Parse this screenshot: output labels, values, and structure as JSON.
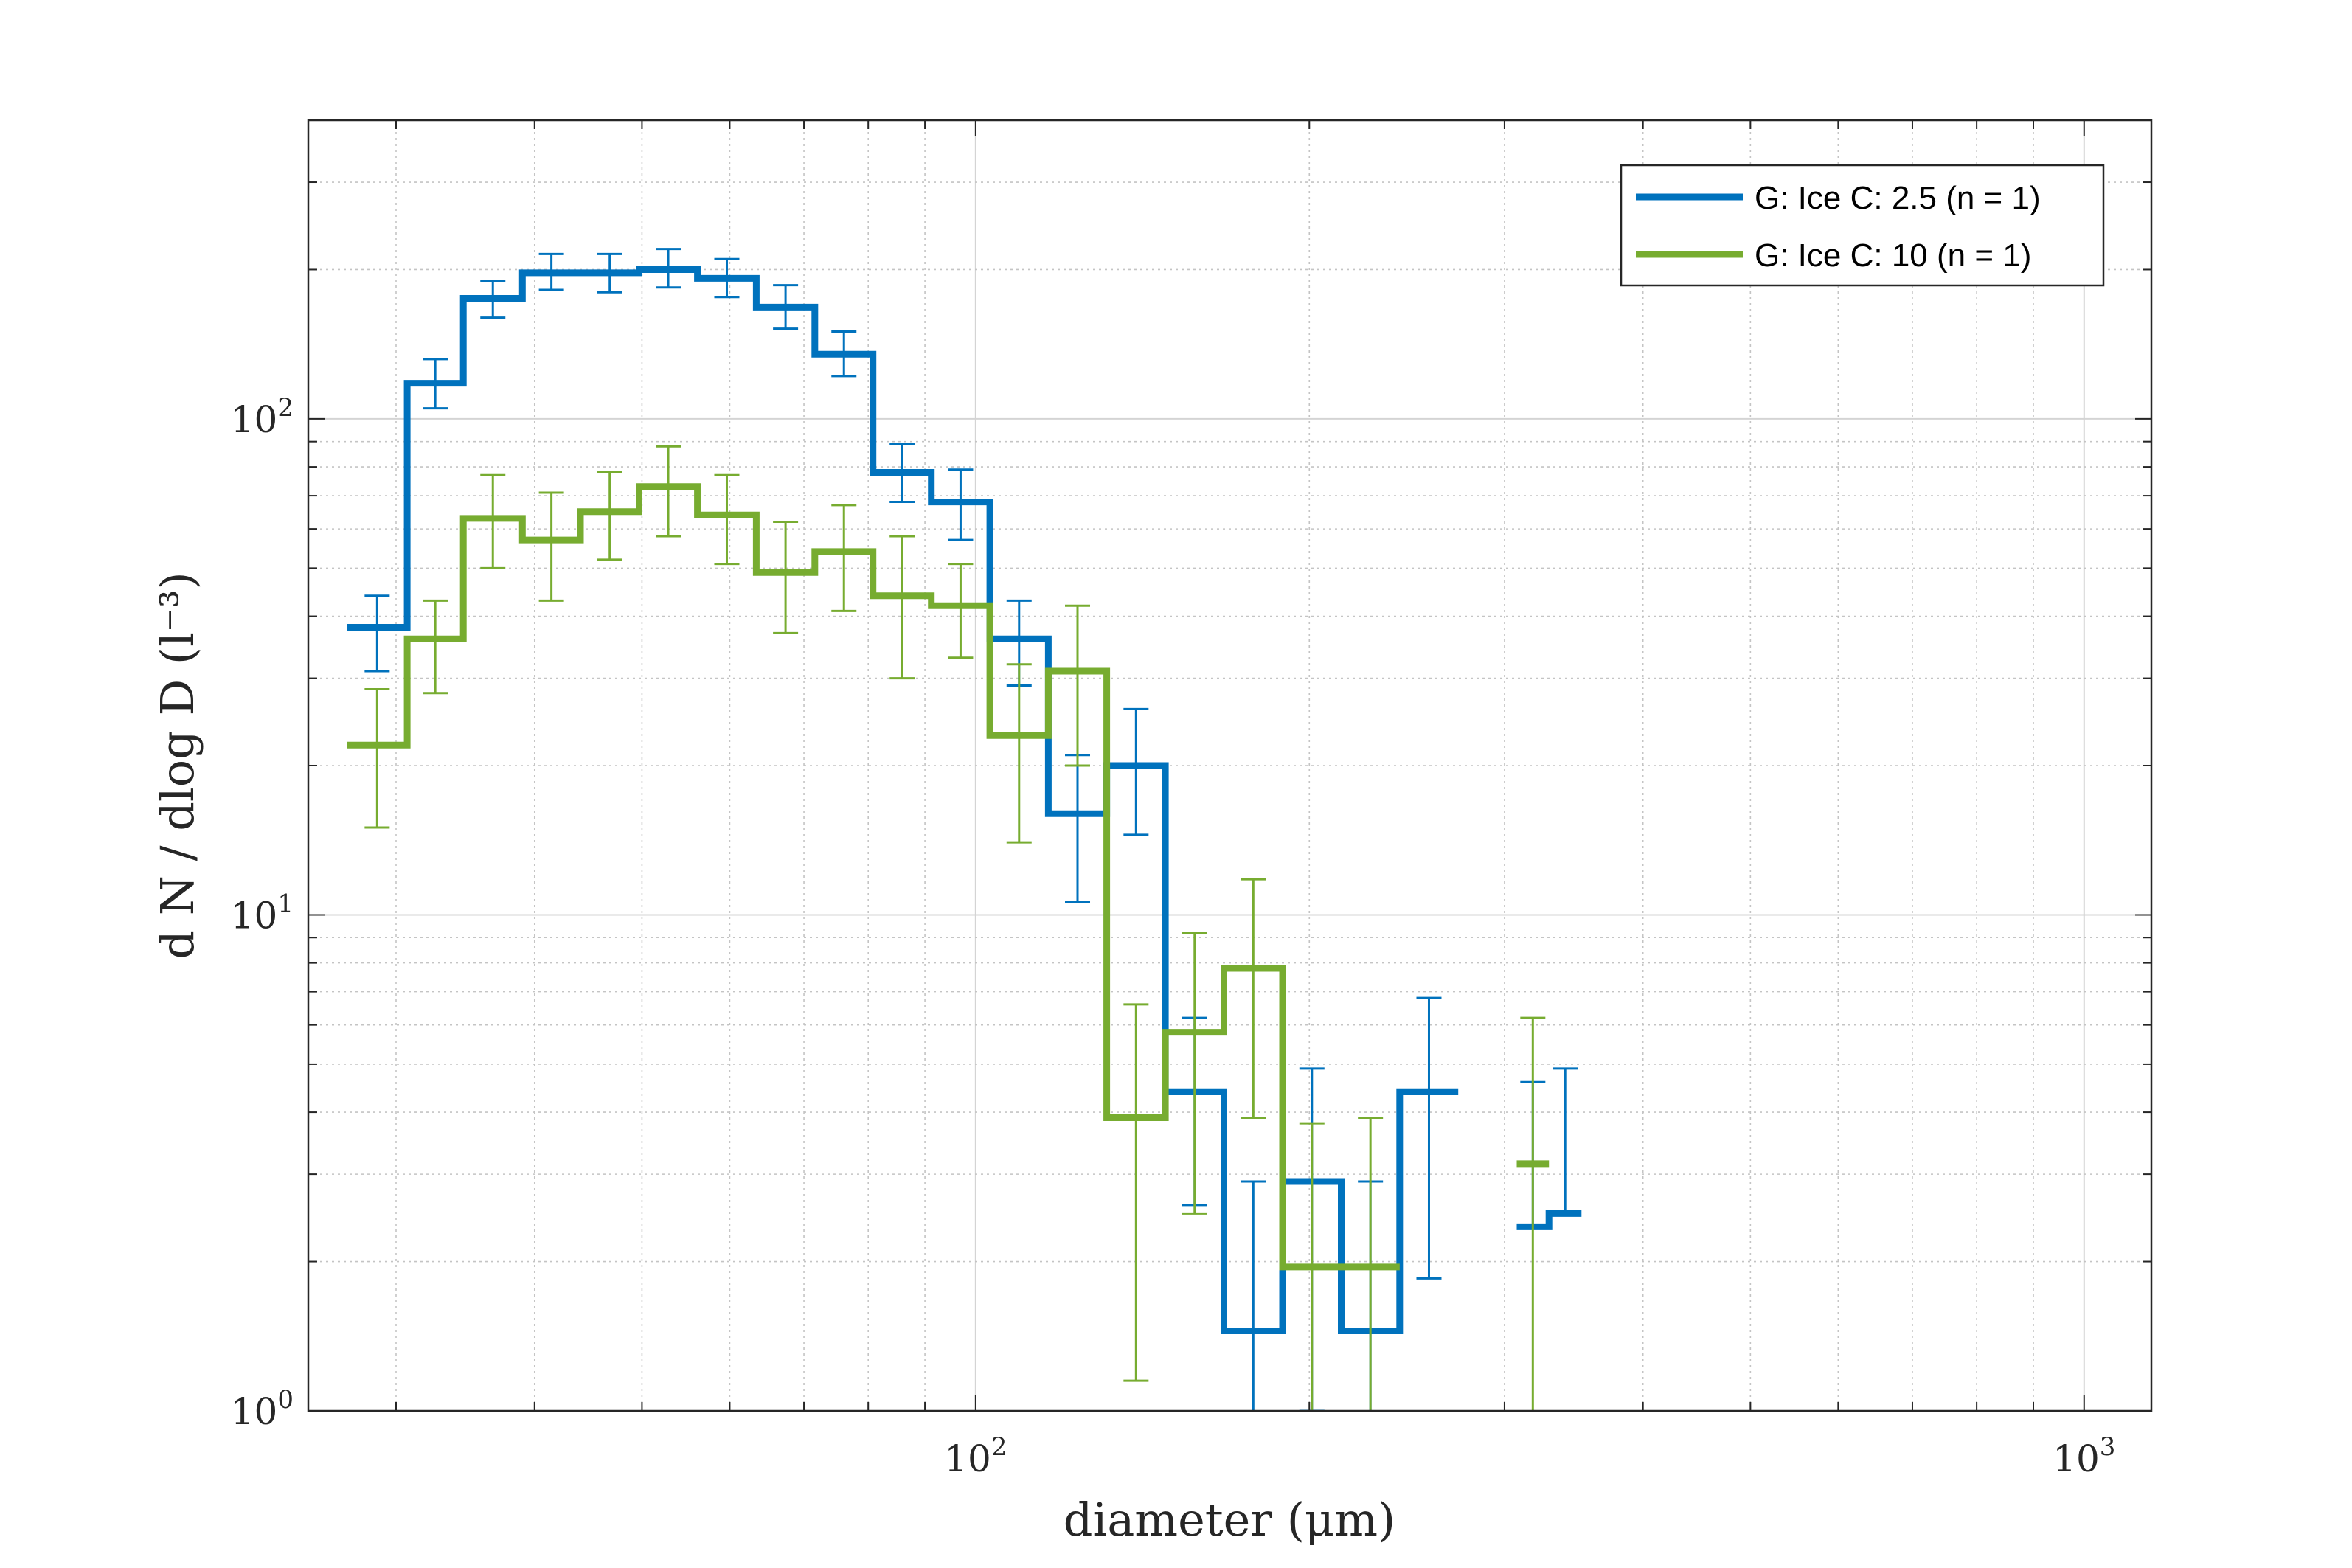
{
  "chart_data": {
    "type": "line",
    "xlabel": "diameter (μm)",
    "ylabel": "d N / dlog D (l⁻³)",
    "xscale": "log",
    "yscale": "log",
    "xlim": [
      25,
      1150
    ],
    "ylim": [
      1,
      400
    ],
    "grid": true,
    "legend_position": "top-right",
    "x_ticks": [
      {
        "value": 100,
        "base": "10",
        "exp": "2"
      },
      {
        "value": 1000,
        "base": "10",
        "exp": "3"
      }
    ],
    "y_ticks": [
      {
        "value": 1,
        "base": "10",
        "exp": "0"
      },
      {
        "value": 10,
        "base": "10",
        "exp": "1"
      },
      {
        "value": 100,
        "base": "10",
        "exp": "2"
      }
    ],
    "series": [
      {
        "name": "G: Ice C: 2.5 (n = 1)",
        "color": "#0072BD",
        "bins": [
          {
            "x0": 27.1,
            "x1": 30.7,
            "y": 38,
            "lo": 31,
            "hi": 44
          },
          {
            "x0": 30.7,
            "x1": 34.5,
            "y": 118,
            "lo": 105,
            "hi": 132
          },
          {
            "x0": 34.5,
            "x1": 39.0,
            "y": 175,
            "lo": 160,
            "hi": 190
          },
          {
            "x0": 39.0,
            "x1": 44.0,
            "y": 197,
            "lo": 182,
            "hi": 215
          },
          {
            "x0": 44.0,
            "x1": 49.7,
            "y": 197,
            "lo": 180,
            "hi": 215
          },
          {
            "x0": 49.7,
            "x1": 56.1,
            "y": 200,
            "lo": 184,
            "hi": 220
          },
          {
            "x0": 56.1,
            "x1": 63.4,
            "y": 192,
            "lo": 176,
            "hi": 210
          },
          {
            "x0": 63.4,
            "x1": 71.6,
            "y": 168,
            "lo": 152,
            "hi": 186
          },
          {
            "x0": 71.6,
            "x1": 80.8,
            "y": 135,
            "lo": 122,
            "hi": 150
          },
          {
            "x0": 80.8,
            "x1": 91.2,
            "y": 78,
            "lo": 68,
            "hi": 89
          },
          {
            "x0": 91.2,
            "x1": 103.0,
            "y": 68,
            "lo": 57,
            "hi": 79
          },
          {
            "x0": 103.0,
            "x1": 116.3,
            "y": 36,
            "lo": 29,
            "hi": 43
          },
          {
            "x0": 116.3,
            "x1": 131.3,
            "y": 16,
            "lo": 10.6,
            "hi": 21
          },
          {
            "x0": 131.3,
            "x1": 148.3,
            "y": 20,
            "lo": 14.5,
            "hi": 26
          },
          {
            "x0": 148.3,
            "x1": 167.5,
            "y": 4.4,
            "lo": 2.6,
            "hi": 6.2
          },
          {
            "x0": 167.5,
            "x1": 189.2,
            "y": 1.45,
            "lo": 0.5,
            "hi": 2.9
          },
          {
            "x0": 189.2,
            "x1": 213.7,
            "y": 2.9,
            "lo": 1.0,
            "hi": 4.9
          },
          {
            "x0": 213.7,
            "x1": 241.3,
            "y": 1.45,
            "lo": 0.5,
            "hi": 2.9
          },
          {
            "x0": 241.3,
            "x1": 272.5,
            "y": 4.4,
            "lo": 1.85,
            "hi": 6.8
          },
          {
            "x0": 307.7,
            "x1": 329.0,
            "y": 2.35,
            "lo": null,
            "hi": 4.6
          },
          {
            "x0": 329.0,
            "x1": 352.0,
            "y": 2.5,
            "lo": null,
            "hi": 4.9
          }
        ]
      },
      {
        "name": "G: Ice C: 10 (n = 1)",
        "color": "#77AC30",
        "bins": [
          {
            "x0": 27.1,
            "x1": 30.7,
            "y": 22,
            "lo": 15,
            "hi": 28.5
          },
          {
            "x0": 30.7,
            "x1": 34.5,
            "y": 36,
            "lo": 28,
            "hi": 43
          },
          {
            "x0": 34.5,
            "x1": 39.0,
            "y": 63,
            "lo": 50,
            "hi": 77
          },
          {
            "x0": 39.0,
            "x1": 44.0,
            "y": 57,
            "lo": 43,
            "hi": 71
          },
          {
            "x0": 44.0,
            "x1": 49.7,
            "y": 65,
            "lo": 52,
            "hi": 78
          },
          {
            "x0": 49.7,
            "x1": 56.1,
            "y": 73,
            "lo": 58,
            "hi": 88
          },
          {
            "x0": 56.1,
            "x1": 63.4,
            "y": 64,
            "lo": 51,
            "hi": 77
          },
          {
            "x0": 63.4,
            "x1": 71.6,
            "y": 49,
            "lo": 37,
            "hi": 62
          },
          {
            "x0": 71.6,
            "x1": 80.8,
            "y": 54,
            "lo": 41,
            "hi": 67
          },
          {
            "x0": 80.8,
            "x1": 91.2,
            "y": 44,
            "lo": 30,
            "hi": 58
          },
          {
            "x0": 91.2,
            "x1": 103.0,
            "y": 42,
            "lo": 33,
            "hi": 51
          },
          {
            "x0": 103.0,
            "x1": 116.3,
            "y": 23,
            "lo": 14,
            "hi": 32
          },
          {
            "x0": 116.3,
            "x1": 131.3,
            "y": 31,
            "lo": 20,
            "hi": 42
          },
          {
            "x0": 131.3,
            "x1": 148.3,
            "y": 3.9,
            "lo": 1.15,
            "hi": 6.6
          },
          {
            "x0": 148.3,
            "x1": 167.5,
            "y": 5.8,
            "lo": 2.5,
            "hi": 9.2
          },
          {
            "x0": 167.5,
            "x1": 189.2,
            "y": 7.8,
            "lo": 3.9,
            "hi": 11.8
          },
          {
            "x0": 189.2,
            "x1": 213.7,
            "y": 1.95,
            "lo": 0.5,
            "hi": 3.8
          },
          {
            "x0": 213.7,
            "x1": 241.3,
            "y": 1.95,
            "lo": 0.5,
            "hi": 3.9
          },
          {
            "x0": 307.7,
            "x1": 329.0,
            "y": 3.15,
            "lo": 0.3,
            "hi": 6.2
          }
        ]
      }
    ]
  }
}
